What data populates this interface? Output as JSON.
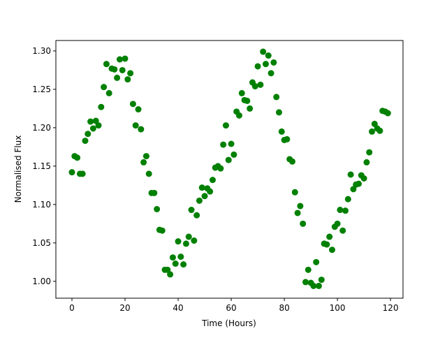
{
  "chart_data": {
    "type": "scatter",
    "x_label": "Time (Hours)",
    "y_label": "Normalised Flux",
    "color": "#008000",
    "x": [
      0,
      1,
      2,
      3,
      4,
      5,
      6,
      7,
      8,
      9,
      10,
      11,
      12,
      13,
      14,
      15,
      16,
      17,
      18,
      19,
      20,
      21,
      22,
      23,
      24,
      25,
      26,
      27,
      28,
      29,
      30,
      31,
      32,
      33,
      34,
      35,
      36,
      37,
      38,
      39,
      40,
      41,
      42,
      43,
      44,
      45,
      46,
      47,
      48,
      49,
      50,
      51,
      52,
      53,
      54,
      55,
      56,
      57,
      58,
      59,
      60,
      61,
      62,
      63,
      64,
      65,
      66,
      67,
      68,
      69,
      70,
      71,
      72,
      73,
      74,
      75,
      76,
      77,
      78,
      79,
      80,
      81,
      82,
      83,
      84,
      85,
      86,
      87,
      88,
      89,
      90,
      91,
      92,
      93,
      94,
      95,
      96,
      97,
      98,
      99,
      100,
      101,
      102,
      103,
      104,
      105,
      106,
      107,
      108,
      109,
      110,
      111,
      112,
      113,
      114,
      115,
      116,
      117,
      118,
      119
    ],
    "values": [
      1.142,
      1.163,
      1.161,
      1.14,
      1.14,
      1.183,
      1.192,
      1.208,
      1.199,
      1.209,
      1.203,
      1.227,
      1.253,
      1.283,
      1.245,
      1.277,
      1.276,
      1.265,
      1.289,
      1.275,
      1.29,
      1.263,
      1.271,
      1.231,
      1.203,
      1.224,
      1.198,
      1.155,
      1.163,
      1.14,
      1.115,
      1.115,
      1.094,
      1.067,
      1.066,
      1.015,
      1.015,
      1.009,
      1.031,
      1.023,
      1.052,
      1.032,
      1.022,
      1.049,
      1.058,
      1.093,
      1.053,
      1.086,
      1.105,
      1.122,
      1.111,
      1.121,
      1.117,
      1.132,
      1.148,
      1.15,
      1.147,
      1.178,
      1.203,
      1.158,
      1.179,
      1.165,
      1.221,
      1.216,
      1.245,
      1.236,
      1.235,
      1.225,
      1.259,
      1.254,
      1.28,
      1.256,
      1.299,
      1.283,
      1.294,
      1.271,
      1.285,
      1.24,
      1.22,
      1.195,
      1.184,
      1.185,
      1.159,
      1.156,
      1.116,
      1.089,
      1.098,
      1.075,
      0.999,
      1.015,
      0.998,
      0.994,
      1.025,
      0.994,
      1.002,
      1.049,
      1.048,
      1.058,
      1.041,
      1.071,
      1.075,
      1.093,
      1.066,
      1.092,
      1.107,
      1.139,
      1.12,
      1.126,
      1.127,
      1.138,
      1.134,
      1.155,
      1.168,
      1.195,
      1.205,
      1.199,
      1.196,
      1.222,
      1.221,
      1.219
    ],
    "xlim": [
      -6.05,
      124.7
    ],
    "ylim": [
      0.978,
      1.3136
    ],
    "xticks": [
      0,
      20,
      40,
      60,
      80,
      100,
      120
    ],
    "yticks": [
      {
        "value": 1.0,
        "label": "1.00"
      },
      1.05,
      {
        "value": 1.1,
        "label": "1.10"
      },
      1.15,
      {
        "value": 1.2,
        "label": "1.20"
      },
      1.25,
      {
        "value": 1.3,
        "label": "1.30"
      }
    ]
  }
}
